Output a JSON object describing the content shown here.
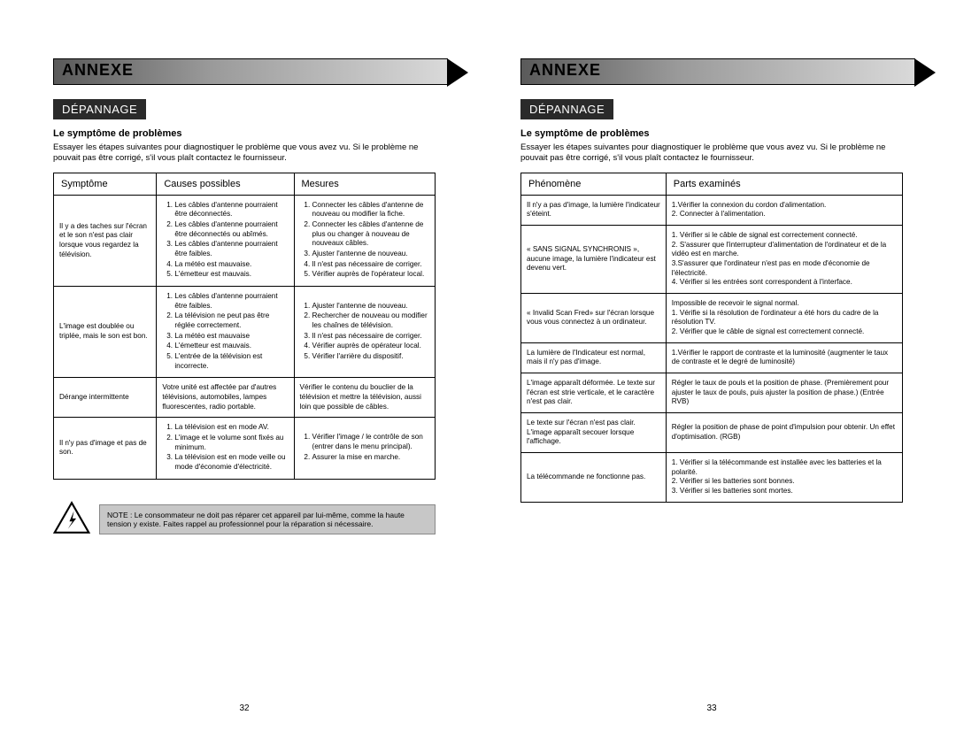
{
  "left": {
    "banner": "ANNEXE",
    "subBanner": "DÉPANNAGE",
    "sectionTitle": "Le symptôme de problèmes",
    "intro": "Essayer les étapes suivantes pour diagnostiquer le problème que vous avez vu. Si le problème ne pouvait pas être corrigé, s'il vous plaît contactez le fournisseur.",
    "headers": {
      "c1": "Symptôme",
      "c2": "Causes possibles",
      "c3": "Mesures"
    },
    "rows": [
      {
        "symptom": "Il y a des taches sur l'écran et le son n'est pas clair lorsque vous regardez la télévision.",
        "causes": [
          "Les câbles d'antenne pourraient être déconnectés.",
          "Les câbles d'antenne pourraient être déconnectés ou abîmés.",
          "Les câbles d'antenne pourraient être faibles.",
          "La météo est mauvaise.",
          "L'émetteur est mauvais."
        ],
        "measures": [
          "Connecter les câbles d'antenne de nouveau ou modifier la fiche.",
          "Connecter les câbles d'antenne de plus ou changer à nouveau de nouveaux câbles.",
          "Ajuster l'antenne de nouveau.",
          "Il n'est pas nécessaire de corriger.",
          "Vérifier auprès de l'opérateur local."
        ]
      },
      {
        "symptom": "L'image est doublée ou triplée, mais le son est bon.",
        "causes": [
          "Les câbles d'antenne pourraient être faibles.",
          "La télévision ne peut pas être réglée correctement.",
          "La météo est mauvaise",
          "L'émetteur est mauvais.",
          "L'entrée de la télévision est incorrecte."
        ],
        "measures": [
          "Ajuster l'antenne de nouveau.",
          "Rechercher de nouveau ou modifier les chaînes de télévision.",
          "Il n'est pas nécessaire de corriger.",
          "Vérifier auprès de opérateur local.",
          "Vérifier l'arrière du dispositif."
        ]
      },
      {
        "symptom": "Dérange intermittente",
        "causesText": "Votre unité est affectée par d'autres télévisions, automobiles, lampes fluorescentes, radio portable.",
        "measuresText": "Vérifier le contenu du bouclier de la télévision et mettre la télévision, aussi loin que possible de câbles."
      },
      {
        "symptom": "Il n'y pas d'image et pas de son.",
        "causes": [
          "La télévision est en mode AV.",
          "L'image et le volume sont fixés au minimum.",
          "La télévision est en mode veille ou mode d'économie d'électricité."
        ],
        "measures": [
          "Vérifier l'image / le contrôle de son (entrer dans le menu principal).",
          "Assurer la mise en marche."
        ]
      }
    ],
    "note": "NOTE : Le consommateur ne doit pas réparer cet appareil par lui-même, comme la haute tension y existe. Faites rappel au professionnel pour la réparation si nécessaire.",
    "pageNum": "32"
  },
  "right": {
    "banner": "ANNEXE",
    "subBanner": "DÉPANNAGE",
    "sectionTitle": "Le symptôme de problèmes",
    "intro": "Essayer les étapes suivantes pour diagnostiquer le problème que vous avez vu. Si le problème ne pouvait pas être corrigé, s'il vous plaît contactez le fournisseur.",
    "headers": {
      "c1": "Phénomène",
      "c2": "Parts examinés"
    },
    "rows": [
      {
        "p": "Il n'y a pas d'image, la lumière l'indicateur s'éteint.",
        "eText": "1.Vérifier la connexion du cordon d'alimentation.\n2. Connecter à l'alimentation."
      },
      {
        "p": "« SANS SIGNAL SYNCHRONIS », aucune image, la lumière l'indicateur est devenu vert.",
        "eText": "1. Vérifier si le câble de signal est correctement connecté.\n2. S'assurer que l'interrupteur d'alimentation de l'ordinateur et de la vidéo est en marche.\n3.S'assurer que l'ordinateur n'est pas en mode d'économie de l'électricité.\n4. Vérifier si les entrées sont correspondent à l'interface."
      },
      {
        "p": "« Invalid Scan Fred» sur l'écran lorsque vous vous connectez à un ordinateur.",
        "eText": "Impossible de recevoir le signal normal.\n1. Vérifie si la résolution de l'ordinateur a été hors du cadre de la résolution TV.\n2. Vérifier que le câble de signal est correctement connecté."
      },
      {
        "p": "La lumière de l'Indicateur est normal, mais il n'y pas d'image.",
        "eText": "1.Vérifier le rapport de contraste et la luminosité (augmenter le taux de contraste et le degré de luminosité)"
      },
      {
        "p": "L'image apparaît déformée. Le texte sur l'écran est strie verticale, et le caractère n'est pas clair.",
        "eText": "Régler le taux de pouls et la position de phase. (Premièrement pour ajuster le taux de pouls, puis ajuster la position de phase.) (Entrée RVB)"
      },
      {
        "p": "Le texte sur l'écran n'est pas clair. L'image apparaît secouer lorsque l'affichage.",
        "eText": "Régler la position de phase de point d'impulsion pour obtenir.  Un effet d'optimisation. (RGB)"
      },
      {
        "p": "La télécommande ne fonctionne pas.",
        "eText": "1. Vérifier si la télécommande est installée avec les batteries et la polarité.\n2. Vérifier si les batteries sont bonnes.\n3. Vérifier si les batteries sont mortes."
      }
    ],
    "pageNum": "33"
  }
}
